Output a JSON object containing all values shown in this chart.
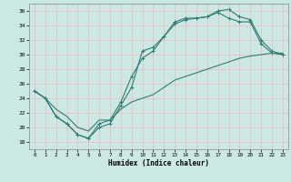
{
  "xlabel": "Humidex (Indice chaleur)",
  "xlim": [
    -0.5,
    23.5
  ],
  "ylim": [
    17,
    37
  ],
  "xticks": [
    0,
    1,
    2,
    3,
    4,
    5,
    6,
    7,
    8,
    9,
    10,
    11,
    12,
    13,
    14,
    15,
    16,
    17,
    18,
    19,
    20,
    21,
    22,
    23
  ],
  "yticks": [
    18,
    20,
    22,
    24,
    26,
    28,
    30,
    32,
    34,
    36
  ],
  "bg_color": "#cce8e5",
  "line_color": "#2e7d72",
  "grid_color": "#f0b8b8",
  "line1_x": [
    0,
    1,
    2,
    3,
    4,
    5,
    6,
    7,
    8,
    9,
    10,
    11,
    12,
    13,
    14,
    15,
    16,
    17,
    18,
    19,
    20,
    21,
    22,
    23
  ],
  "line1_y": [
    25,
    24,
    21.5,
    20.5,
    19.0,
    18.5,
    20.0,
    20.5,
    23.0,
    25.5,
    30.5,
    31.0,
    32.5,
    34.5,
    35.0,
    35.0,
    35.2,
    36.0,
    36.2,
    35.2,
    34.8,
    32.0,
    30.5,
    30.0
  ],
  "line2_x": [
    0,
    1,
    2,
    3,
    4,
    5,
    6,
    7,
    8,
    9,
    10,
    11,
    12,
    13,
    14,
    15,
    16,
    17,
    18,
    19,
    20,
    21,
    22,
    23
  ],
  "line2_y": [
    25,
    24,
    21.5,
    20.5,
    19.0,
    18.5,
    20.5,
    21.0,
    23.5,
    27.0,
    29.5,
    30.5,
    32.5,
    34.2,
    34.8,
    35.0,
    35.2,
    35.8,
    35.0,
    34.5,
    34.5,
    31.5,
    30.2,
    30.0
  ],
  "line3_x": [
    0,
    1,
    2,
    3,
    4,
    5,
    6,
    7,
    8,
    9,
    10,
    11,
    12,
    13,
    14,
    15,
    16,
    17,
    18,
    19,
    20,
    21,
    22,
    23
  ],
  "line3_y": [
    25,
    24,
    22.5,
    21.5,
    20.0,
    19.5,
    21.0,
    21.0,
    22.5,
    23.5,
    24.0,
    24.5,
    25.5,
    26.5,
    27.0,
    27.5,
    28.0,
    28.5,
    29.0,
    29.5,
    29.8,
    30.0,
    30.2,
    30.2
  ]
}
